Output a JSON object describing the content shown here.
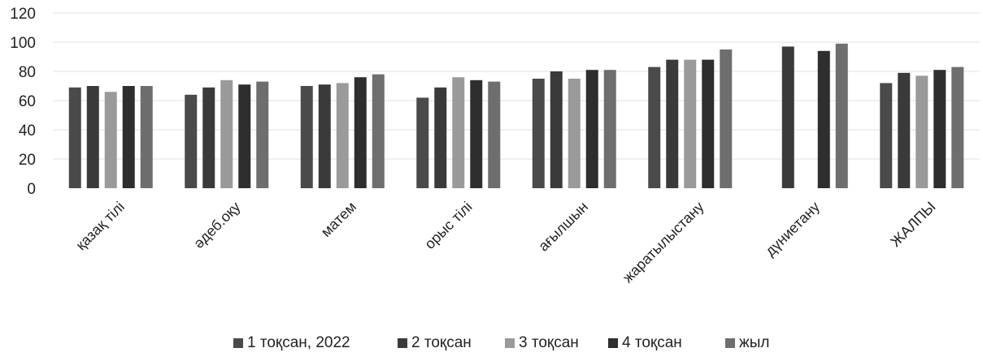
{
  "chart_data": {
    "type": "bar",
    "ylim": [
      0,
      120
    ],
    "yticks": [
      "0",
      "20",
      "40",
      "60",
      "80",
      "100",
      "120"
    ],
    "grid": true,
    "legend_position": "bottom",
    "categories": [
      "қазақ тілі",
      "әдеб.оқу",
      "матем",
      "орыс тілі",
      "ағылшын",
      "жаратылыстану",
      "дүниетану",
      "ЖАЛПЫ"
    ],
    "series": [
      {
        "name": "1 тоқсан, 2022",
        "color": "#4a4a4a",
        "values": [
          69,
          64,
          70,
          62,
          75,
          83,
          null,
          72
        ]
      },
      {
        "name": "2 тоқсан",
        "color": "#3a3a3a",
        "values": [
          70,
          69,
          71,
          69,
          80,
          88,
          97,
          79
        ]
      },
      {
        "name": "3 тоқсан",
        "color": "#9a9a9a",
        "values": [
          66,
          74,
          72,
          76,
          75,
          88,
          null,
          77
        ]
      },
      {
        "name": "4 тоқсан",
        "color": "#2e2e2e",
        "values": [
          70,
          71,
          76,
          74,
          81,
          88,
          94,
          81
        ]
      },
      {
        "name": "жыл",
        "color": "#6e6e6e",
        "values": [
          70,
          73,
          78,
          73,
          81,
          95,
          99,
          83
        ]
      }
    ]
  }
}
